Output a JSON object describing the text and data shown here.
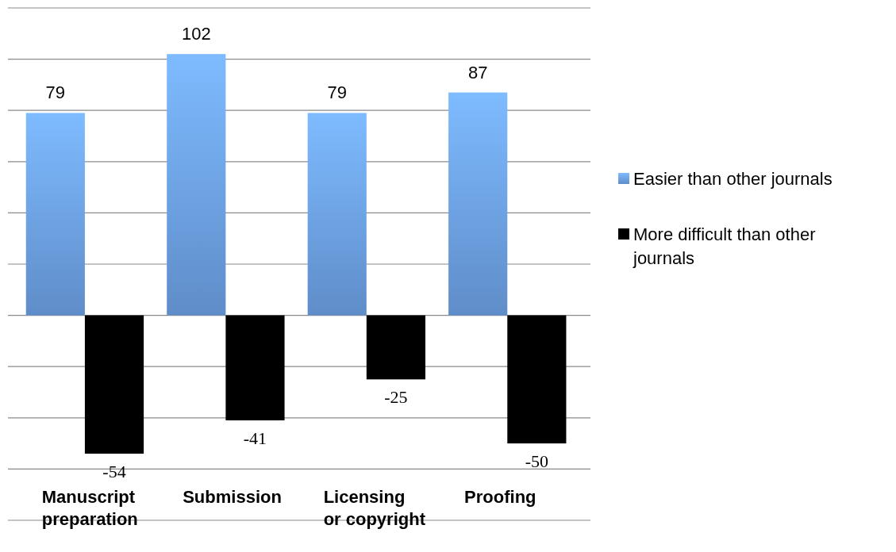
{
  "chart_data": {
    "type": "bar",
    "categories": [
      "Manuscript\npreparation",
      "Submission",
      "Licensing\nor copyright",
      "Proofing"
    ],
    "series": [
      {
        "name": "Easier than other journals",
        "color": "#6fa5ec",
        "values": [
          79,
          102,
          79,
          87
        ]
      },
      {
        "name": "More difficult than other journals",
        "color": "#000000",
        "values": [
          -54,
          -41,
          -25,
          -50
        ]
      }
    ],
    "ylim": [
      -80,
      120
    ],
    "yticks": [
      {
        "value": -80,
        "label": null
      },
      {
        "value": -60,
        "label": null
      },
      {
        "value": -40,
        "label": null
      },
      {
        "value": -20,
        "label": null
      },
      {
        "value": 0,
        "label": null
      },
      {
        "value": 20,
        "label": null
      },
      {
        "value": 40,
        "label": null
      },
      {
        "value": 60,
        "label": null
      },
      {
        "value": 80,
        "label": null
      },
      {
        "value": 100,
        "label": null
      },
      {
        "value": 120,
        "label": null
      }
    ],
    "tick_labels": "x",
    "grid": "y",
    "legend": "right",
    "data_labels": true
  }
}
